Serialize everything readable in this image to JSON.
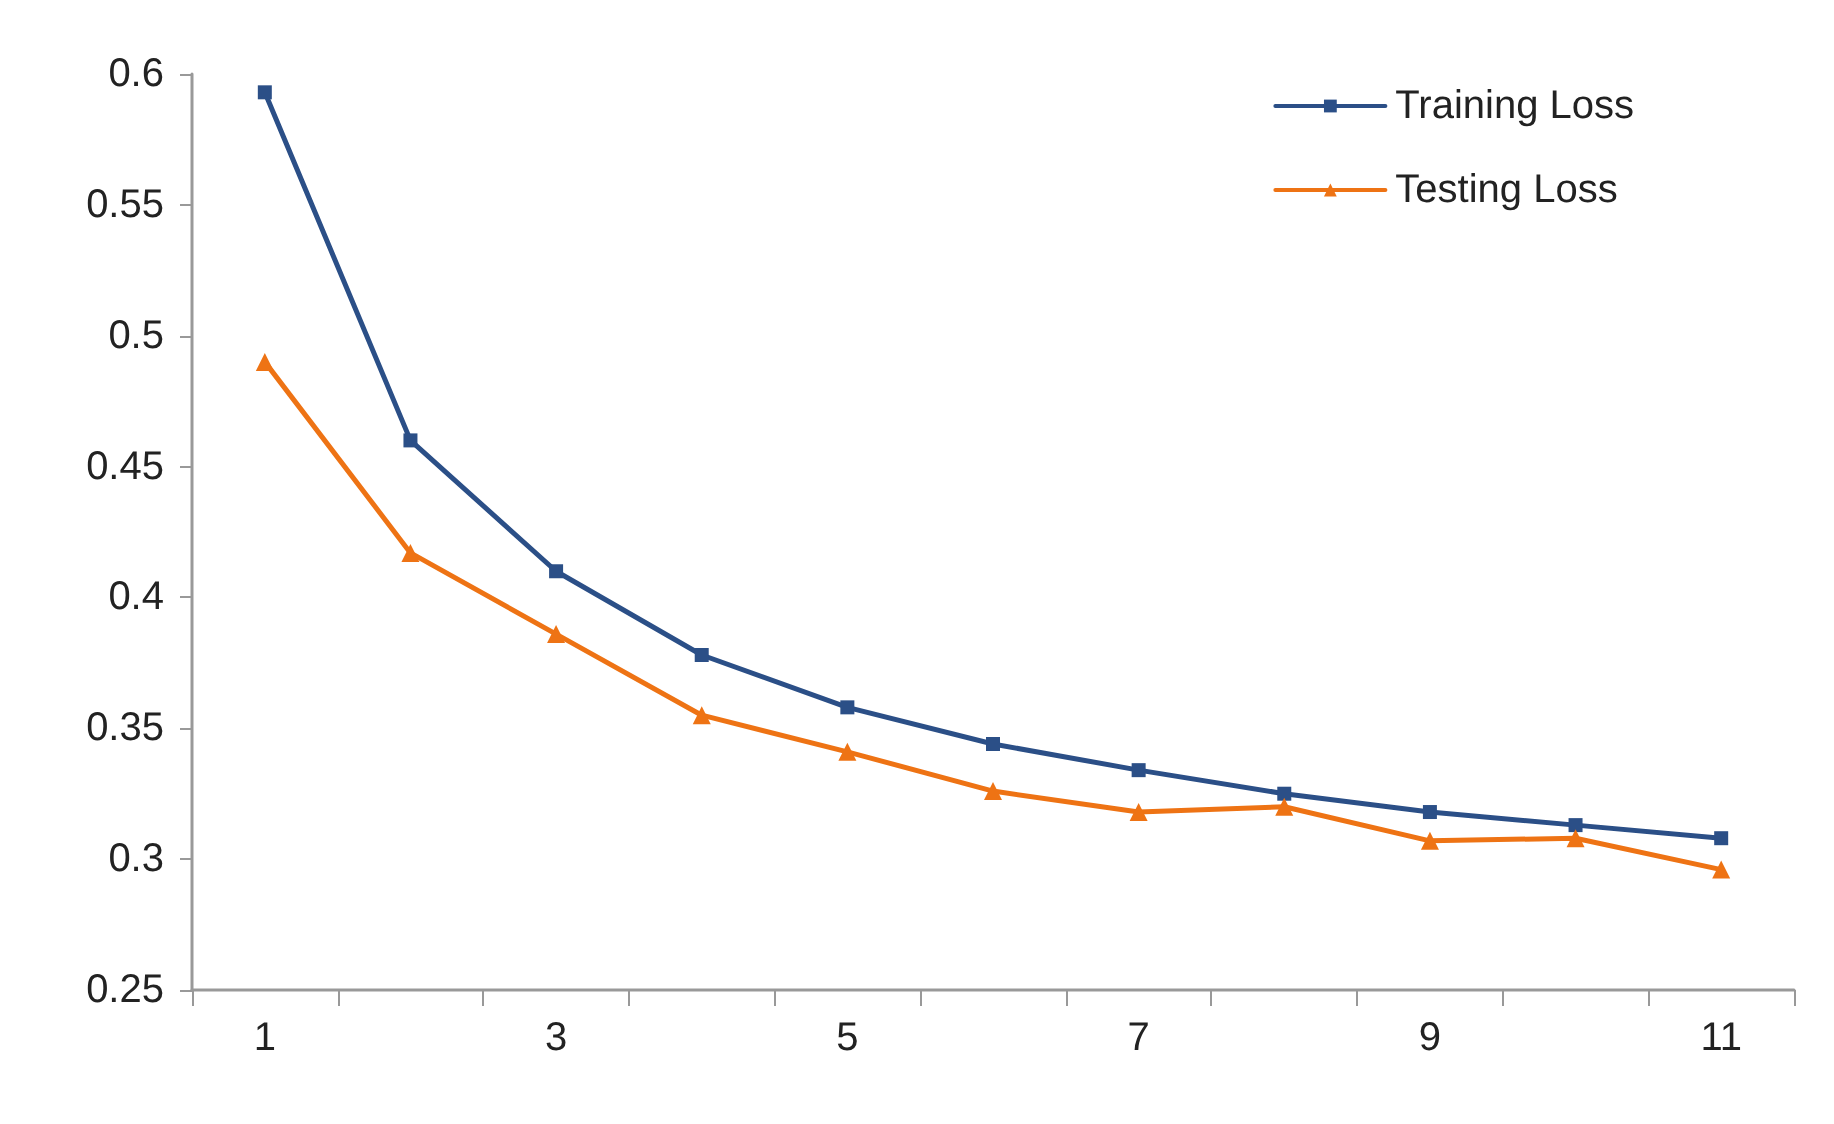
{
  "chart_data": {
    "type": "line",
    "categories": [
      "1",
      null,
      "3",
      null,
      "5",
      null,
      "7",
      null,
      "9",
      null,
      "11"
    ],
    "series": [
      {
        "name": "Training Loss",
        "color": "#2b4f87",
        "marker": "square",
        "values": [
          0.593,
          0.46,
          0.41,
          0.378,
          0.358,
          0.344,
          0.334,
          0.325,
          0.318,
          0.313,
          0.308
        ]
      },
      {
        "name": "Testing Loss",
        "color": "#ee7314",
        "marker": "triangle",
        "values": [
          0.49,
          0.417,
          0.386,
          0.355,
          0.341,
          0.326,
          0.318,
          0.32,
          0.307,
          0.308,
          0.296
        ]
      }
    ],
    "ylim": [
      0.25,
      0.6
    ],
    "yticks": [
      0.25,
      0.3,
      0.35,
      0.4,
      0.45,
      0.5,
      0.55,
      0.6
    ],
    "grid": false,
    "legend": "top right",
    "line_style": "solid"
  }
}
